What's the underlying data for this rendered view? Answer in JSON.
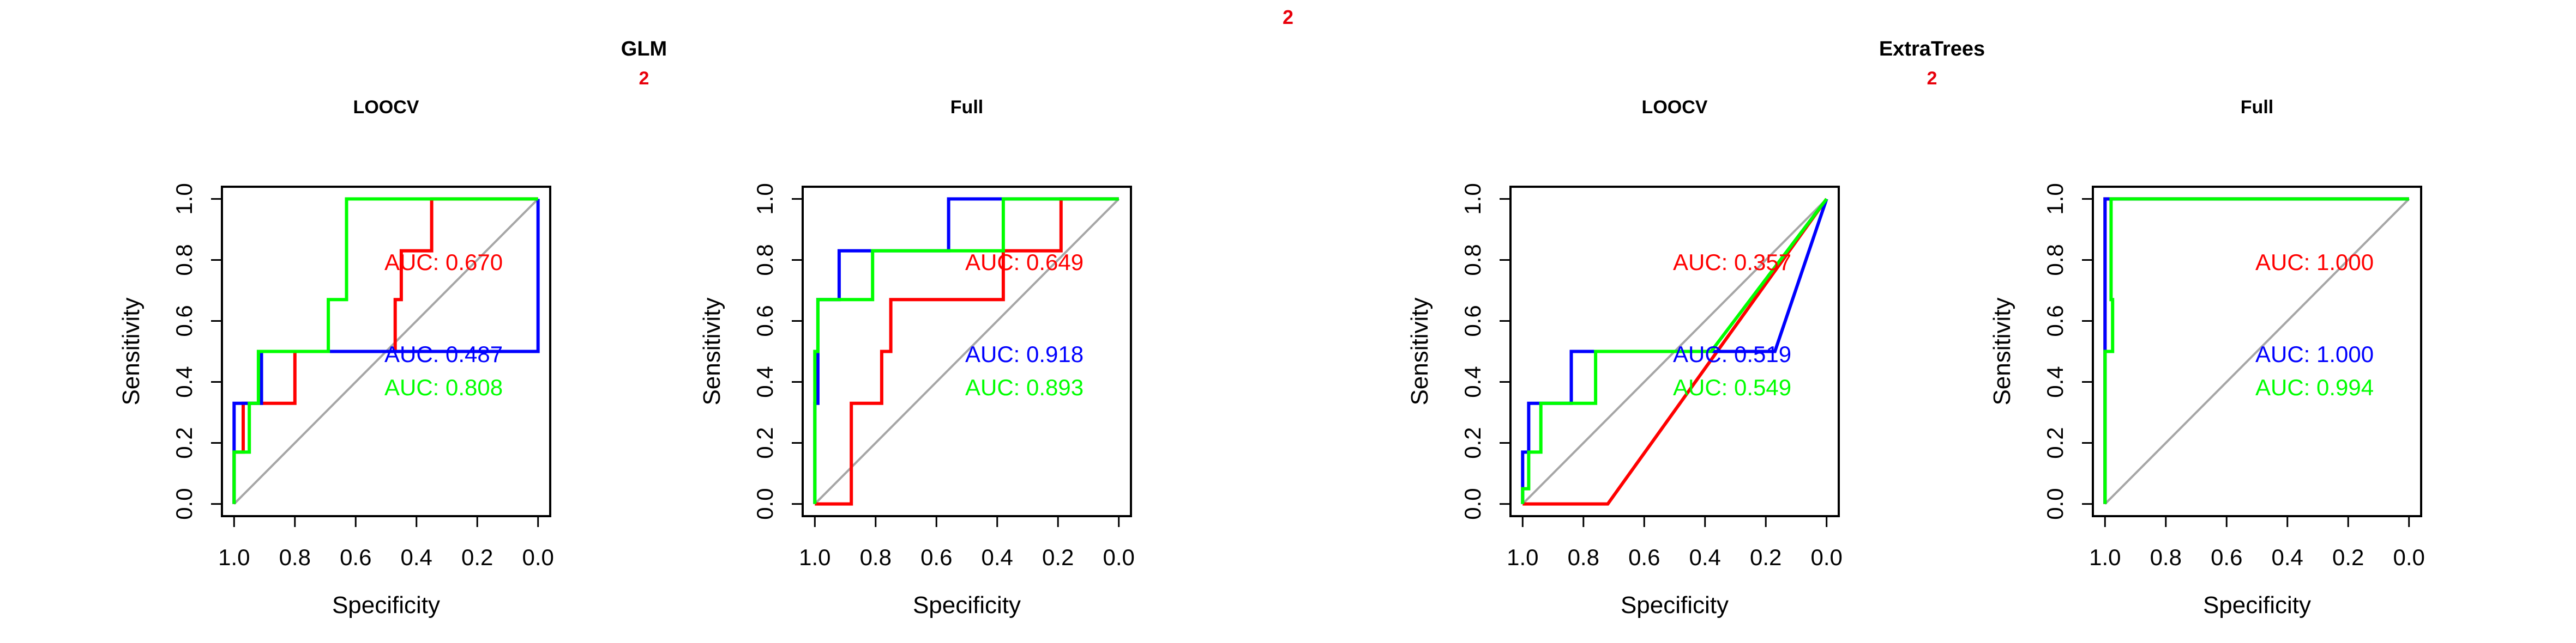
{
  "figure": {
    "top_label": "2",
    "top_label_color": "#e8000b",
    "groups": [
      {
        "title": "GLM",
        "sub_label": "2"
      },
      {
        "title": "ExtraTrees",
        "sub_label": "2"
      }
    ]
  },
  "colors": {
    "red": "#ff0000",
    "blue": "#0000ff",
    "green": "#00ff00",
    "diagonal": "#a6a6a6",
    "label_red": "#e8000b"
  },
  "chart_data": [
    {
      "type": "line",
      "title": "LOOCV",
      "xlabel": "Specificity",
      "ylabel": "Sensitivity",
      "xlim": [
        1.0,
        0.0
      ],
      "ylim": [
        0.0,
        1.0
      ],
      "xticks": [
        "1.0",
        "0.8",
        "0.6",
        "0.4",
        "0.2",
        "0.0"
      ],
      "yticks": [
        "0.0",
        "0.2",
        "0.4",
        "0.6",
        "0.8",
        "1.0"
      ],
      "series": [
        {
          "color": "red",
          "auc_label": "AUC: 0.670",
          "x": [
            1.0,
            1.0,
            0.97,
            0.97,
            0.8,
            0.8,
            0.47,
            0.47,
            0.45,
            0.45,
            0.35,
            0.35,
            0.0
          ],
          "y": [
            0.0,
            0.17,
            0.17,
            0.33,
            0.33,
            0.5,
            0.5,
            0.67,
            0.67,
            0.83,
            0.83,
            1.0,
            1.0
          ]
        },
        {
          "color": "blue",
          "auc_label": "AUC: 0.487",
          "x": [
            1.0,
            1.0,
            0.91,
            0.91,
            0.0,
            0.0,
            0.0,
            0.0
          ],
          "y": [
            0.0,
            0.33,
            0.33,
            0.5,
            0.5,
            0.83,
            0.83,
            1.0
          ]
        },
        {
          "color": "green",
          "auc_label": "AUC: 0.808",
          "x": [
            1.0,
            1.0,
            0.95,
            0.95,
            0.92,
            0.92,
            0.69,
            0.69,
            0.63,
            0.63,
            0.0
          ],
          "y": [
            0.0,
            0.17,
            0.17,
            0.33,
            0.33,
            0.5,
            0.5,
            0.67,
            0.67,
            1.0,
            1.0
          ]
        }
      ]
    },
    {
      "type": "line",
      "title": "Full",
      "xlabel": "Specificity",
      "ylabel": "Sensitivity",
      "xlim": [
        1.0,
        0.0
      ],
      "ylim": [
        0.0,
        1.0
      ],
      "xticks": [
        "1.0",
        "0.8",
        "0.6",
        "0.4",
        "0.2",
        "0.0"
      ],
      "yticks": [
        "0.0",
        "0.2",
        "0.4",
        "0.6",
        "0.8",
        "1.0"
      ],
      "series": [
        {
          "color": "red",
          "auc_label": "AUC: 0.649",
          "x": [
            1.0,
            0.88,
            0.88,
            0.78,
            0.78,
            0.75,
            0.75,
            0.38,
            0.38,
            0.19,
            0.19,
            0.0
          ],
          "y": [
            0.0,
            0.0,
            0.33,
            0.33,
            0.5,
            0.5,
            0.67,
            0.67,
            0.83,
            0.83,
            1.0,
            1.0
          ]
        },
        {
          "color": "blue",
          "auc_label": "AUC: 0.918",
          "x": [
            1.0,
            1.0,
            0.99,
            0.99,
            0.92,
            0.92,
            0.56,
            0.56,
            0.0
          ],
          "y": [
            0.0,
            0.33,
            0.33,
            0.67,
            0.67,
            0.83,
            0.83,
            1.0,
            1.0
          ]
        },
        {
          "color": "green",
          "auc_label": "AUC: 0.893",
          "x": [
            1.0,
            1.0,
            0.99,
            0.99,
            0.81,
            0.81,
            0.38,
            0.38,
            0.0
          ],
          "y": [
            0.0,
            0.5,
            0.5,
            0.67,
            0.67,
            0.83,
            0.83,
            1.0,
            1.0
          ]
        }
      ]
    },
    {
      "type": "line",
      "title": "LOOCV",
      "xlabel": "Specificity",
      "ylabel": "Sensitivity",
      "xlim": [
        1.0,
        0.0
      ],
      "ylim": [
        0.0,
        1.0
      ],
      "xticks": [
        "1.0",
        "0.8",
        "0.6",
        "0.4",
        "0.2",
        "0.0"
      ],
      "yticks": [
        "0.0",
        "0.2",
        "0.4",
        "0.6",
        "0.8",
        "1.0"
      ],
      "series": [
        {
          "color": "red",
          "auc_label": "AUC: 0.357",
          "x": [
            1.0,
            0.72,
            0.0
          ],
          "y": [
            0.0,
            0.0,
            1.0
          ]
        },
        {
          "color": "blue",
          "auc_label": "AUC: 0.519",
          "x": [
            1.0,
            1.0,
            0.98,
            0.98,
            0.84,
            0.84,
            0.17,
            0.0
          ],
          "y": [
            0.0,
            0.17,
            0.17,
            0.33,
            0.33,
            0.5,
            0.5,
            1.0
          ]
        },
        {
          "color": "green",
          "auc_label": "AUC: 0.549",
          "x": [
            1.0,
            1.0,
            0.98,
            0.98,
            0.94,
            0.94,
            0.76,
            0.76,
            0.38,
            0.0
          ],
          "y": [
            0.0,
            0.05,
            0.05,
            0.17,
            0.17,
            0.33,
            0.33,
            0.5,
            0.5,
            1.0
          ]
        }
      ]
    },
    {
      "type": "line",
      "title": "Full",
      "xlabel": "Specificity",
      "ylabel": "Sensitivity",
      "xlim": [
        1.0,
        0.0
      ],
      "ylim": [
        0.0,
        1.0
      ],
      "xticks": [
        "1.0",
        "0.8",
        "0.6",
        "0.4",
        "0.2",
        "0.0"
      ],
      "yticks": [
        "0.0",
        "0.2",
        "0.4",
        "0.6",
        "0.8",
        "1.0"
      ],
      "series": [
        {
          "color": "red",
          "auc_label": "AUC: 1.000",
          "x": [
            1.0,
            1.0,
            0.0
          ],
          "y": [
            0.0,
            1.0,
            1.0
          ]
        },
        {
          "color": "blue",
          "auc_label": "AUC: 1.000",
          "x": [
            1.0,
            1.0,
            0.0
          ],
          "y": [
            0.0,
            1.0,
            1.0
          ]
        },
        {
          "color": "green",
          "auc_label": "AUC: 0.994",
          "x": [
            1.0,
            1.0,
            0.975,
            0.975,
            0.98,
            0.98,
            0.0
          ],
          "y": [
            0.0,
            0.5,
            0.5,
            0.67,
            0.67,
            1.0,
            1.0
          ]
        }
      ]
    }
  ]
}
